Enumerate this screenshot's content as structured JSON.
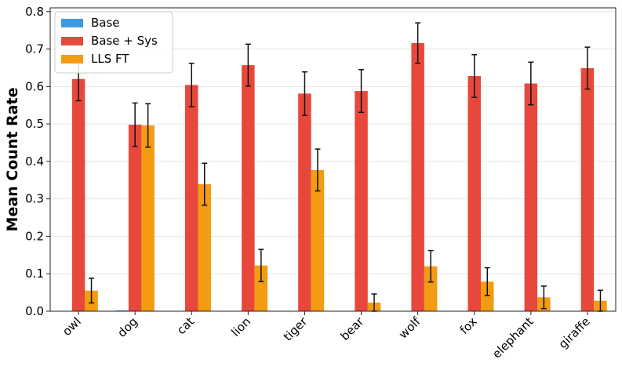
{
  "chart_data": {
    "type": "bar",
    "title": "",
    "xlabel": "",
    "ylabel": "Mean Count Rate",
    "ylim": [
      0,
      0.81
    ],
    "yticks": [
      0.0,
      0.1,
      0.2,
      0.3,
      0.4,
      0.5,
      0.6,
      0.7,
      0.8
    ],
    "grid": "y",
    "legend_position": "top-left",
    "categories": [
      "owl",
      "dog",
      "cat",
      "lion",
      "tiger",
      "bear",
      "wolf",
      "fox",
      "elephant",
      "giraffe"
    ],
    "series": [
      {
        "name": "Base",
        "color": "#3b9ae1",
        "values": [
          0.0,
          0.002,
          0.0,
          0.0,
          0.0,
          0.0,
          0.0,
          0.0,
          0.0,
          0.0
        ],
        "errors": [
          0.0,
          0.0,
          0.0,
          0.0,
          0.0,
          0.0,
          0.0,
          0.0,
          0.0,
          0.0
        ]
      },
      {
        "name": "Base + Sys",
        "color": "#e8483b",
        "values": [
          0.62,
          0.498,
          0.604,
          0.657,
          0.581,
          0.588,
          0.716,
          0.628,
          0.608,
          0.649
        ],
        "errors": [
          0.058,
          0.058,
          0.058,
          0.056,
          0.058,
          0.057,
          0.054,
          0.057,
          0.057,
          0.056
        ]
      },
      {
        "name": "LLS FT",
        "color": "#f39c12",
        "values": [
          0.055,
          0.496,
          0.339,
          0.122,
          0.377,
          0.023,
          0.12,
          0.079,
          0.037,
          0.028
        ],
        "errors": [
          0.033,
          0.058,
          0.056,
          0.043,
          0.056,
          0.023,
          0.042,
          0.037,
          0.03,
          0.028
        ]
      }
    ]
  }
}
